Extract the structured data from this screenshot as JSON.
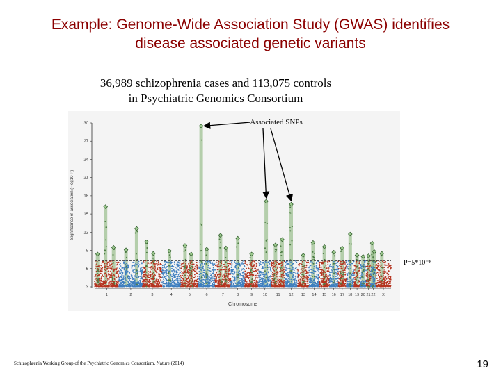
{
  "slide": {
    "title_line1": "Example: Genome-Wide Association Study (GWAS) identifies",
    "title_line2": "disease associated genetic variants",
    "subtitle_line1": "36,989 schizophrenia cases and 113,075 controls",
    "subtitle_line2": "in Psychiatric Genomics Consortium",
    "citation": "Schizophrenia Working Group of the Psychiatric Genomics Consortium, Nature (2014)",
    "page_number": "19"
  },
  "colors": {
    "title": "#8b0000",
    "odd_chromosome": "#b5331f",
    "even_chromosome": "#3f7fbf",
    "highlight": "#7fae6f",
    "threshold_line": "#444444"
  },
  "chart_data": {
    "type": "scatter",
    "subtype": "manhattan",
    "xlabel": "Chromosome",
    "ylabel": "Significance of association (−log10 P)",
    "ylim": [
      3,
      30
    ],
    "yticks": [
      3,
      6,
      9,
      12,
      15,
      18,
      21,
      24,
      27,
      30
    ],
    "categories": [
      "1",
      "2",
      "3",
      "4",
      "5",
      "6",
      "7",
      "8",
      "9",
      "10",
      "11",
      "12",
      "13",
      "14",
      "15",
      "16",
      "17",
      "18",
      "19",
      "20",
      "21",
      "22",
      "X"
    ],
    "chromosome_sizes": [
      248,
      242,
      198,
      190,
      181,
      171,
      159,
      145,
      138,
      134,
      135,
      133,
      114,
      107,
      102,
      90,
      83,
      80,
      59,
      64,
      47,
      51,
      156
    ],
    "threshold": {
      "value": 7.3,
      "label": "P=5*10⁻⁸"
    },
    "annotation": {
      "text": "Associated SNPs"
    },
    "peaks": [
      {
        "chromosome": "1",
        "positions": [
          0.12,
          0.45,
          0.78
        ],
        "values": [
          8.4,
          16.2,
          9.5
        ]
      },
      {
        "chromosome": "2",
        "positions": [
          0.3,
          0.75
        ],
        "values": [
          9.1,
          12.6
        ]
      },
      {
        "chromosome": "3",
        "positions": [
          0.2,
          0.55
        ],
        "values": [
          10.4,
          8.5
        ]
      },
      {
        "chromosome": "4",
        "positions": [
          0.4
        ],
        "values": [
          8.9
        ]
      },
      {
        "chromosome": "5",
        "positions": [
          0.25,
          0.6
        ],
        "values": [
          9.8,
          8.4
        ]
      },
      {
        "chromosome": "6",
        "positions": [
          0.17,
          0.5
        ],
        "values": [
          29.5,
          9.2
        ]
      },
      {
        "chromosome": "7",
        "positions": [
          0.35,
          0.7
        ],
        "values": [
          11.5,
          9.4
        ]
      },
      {
        "chromosome": "8",
        "positions": [
          0.5
        ],
        "values": [
          11.0
        ]
      },
      {
        "chromosome": "9",
        "positions": [
          0.5
        ],
        "values": [
          8.4
        ]
      },
      {
        "chromosome": "10",
        "positions": [
          0.6
        ],
        "values": [
          17.1
        ]
      },
      {
        "chromosome": "11",
        "positions": [
          0.3,
          0.8
        ],
        "values": [
          9.9,
          10.8
        ]
      },
      {
        "chromosome": "12",
        "positions": [
          0.5
        ],
        "values": [
          16.6
        ]
      },
      {
        "chromosome": "13",
        "positions": [
          0.5
        ],
        "values": [
          8.2
        ]
      },
      {
        "chromosome": "14",
        "positions": [
          0.4
        ],
        "values": [
          10.3
        ]
      },
      {
        "chromosome": "15",
        "positions": [
          0.5
        ],
        "values": [
          9.6
        ]
      },
      {
        "chromosome": "16",
        "positions": [
          0.5
        ],
        "values": [
          8.7
        ]
      },
      {
        "chromosome": "17",
        "positions": [
          0.5
        ],
        "values": [
          9.4
        ]
      },
      {
        "chromosome": "18",
        "positions": [
          0.5
        ],
        "values": [
          11.7
        ]
      },
      {
        "chromosome": "19",
        "positions": [
          0.5
        ],
        "values": [
          8.2
        ]
      },
      {
        "chromosome": "20",
        "positions": [
          0.5
        ],
        "values": [
          8.0
        ]
      },
      {
        "chromosome": "21",
        "positions": [
          0.5
        ],
        "values": [
          8.1
        ]
      },
      {
        "chromosome": "22",
        "positions": [
          0.3,
          0.7
        ],
        "values": [
          10.2,
          8.8
        ]
      },
      {
        "chromosome": "X",
        "positions": [
          0.4
        ],
        "values": [
          8.5
        ]
      }
    ]
  }
}
